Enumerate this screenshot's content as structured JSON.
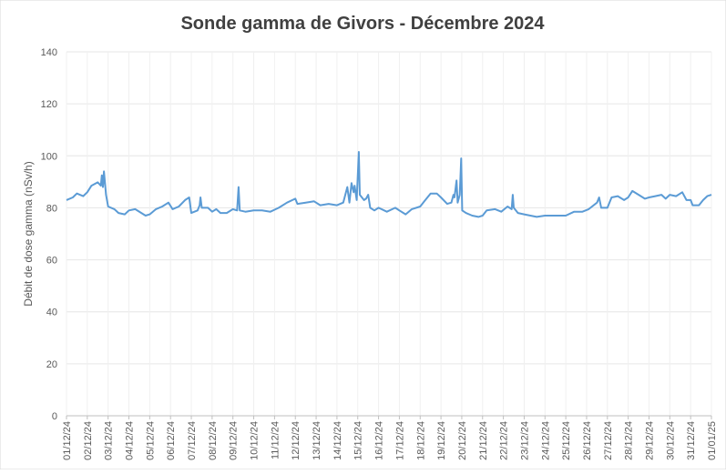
{
  "chart_data": {
    "type": "line",
    "title": "Sonde gamma de Givors - Décembre 2024",
    "ylabel": "Débit de dose gamma (nSv/h)",
    "color": "#5b9bd5",
    "grid": true,
    "xlim": [
      0,
      31
    ],
    "ylim": [
      0,
      140
    ],
    "yticks": [
      0,
      20,
      40,
      60,
      80,
      100,
      120,
      140
    ],
    "xticks": [
      {
        "value": 0,
        "label": "01/12/24"
      },
      {
        "value": 1,
        "label": "02/12/24"
      },
      {
        "value": 2,
        "label": "03/12/24"
      },
      {
        "value": 3,
        "label": "04/12/24"
      },
      {
        "value": 4,
        "label": "05/12/24"
      },
      {
        "value": 5,
        "label": "06/12/24"
      },
      {
        "value": 6,
        "label": "07/12/24"
      },
      {
        "value": 7,
        "label": "08/12/24"
      },
      {
        "value": 8,
        "label": "09/12/24"
      },
      {
        "value": 9,
        "label": "10/12/24"
      },
      {
        "value": 10,
        "label": "11/12/24"
      },
      {
        "value": 11,
        "label": "12/12/24"
      },
      {
        "value": 12,
        "label": "13/12/24"
      },
      {
        "value": 13,
        "label": "14/12/24"
      },
      {
        "value": 14,
        "label": "15/12/24"
      },
      {
        "value": 15,
        "label": "16/12/24"
      },
      {
        "value": 16,
        "label": "17/12/24"
      },
      {
        "value": 17,
        "label": "18/12/24"
      },
      {
        "value": 18,
        "label": "19/12/24"
      },
      {
        "value": 19,
        "label": "20/12/24"
      },
      {
        "value": 20,
        "label": "21/12/24"
      },
      {
        "value": 21,
        "label": "22/12/24"
      },
      {
        "value": 22,
        "label": "23/12/24"
      },
      {
        "value": 23,
        "label": "24/12/24"
      },
      {
        "value": 24,
        "label": "25/12/24"
      },
      {
        "value": 25,
        "label": "26/12/24"
      },
      {
        "value": 26,
        "label": "27/12/24"
      },
      {
        "value": 27,
        "label": "28/12/24"
      },
      {
        "value": 28,
        "label": "29/12/24"
      },
      {
        "value": 29,
        "label": "30/12/24"
      },
      {
        "value": 30,
        "label": "31/12/24"
      },
      {
        "value": 31,
        "label": "01/01/25"
      }
    ],
    "x": [
      0,
      0.3,
      0.5,
      0.8,
      1,
      1.2,
      1.5,
      1.65,
      1.7,
      1.75,
      1.8,
      1.9,
      2,
      2.3,
      2.5,
      2.8,
      3,
      3.3,
      3.6,
      3.8,
      4,
      4.3,
      4.6,
      4.9,
      5.1,
      5.4,
      5.7,
      5.9,
      6,
      6.3,
      6.4,
      6.44,
      6.5,
      6.8,
      7,
      7.2,
      7.4,
      7.7,
      8,
      8.2,
      8.27,
      8.33,
      8.6,
      9,
      9.4,
      9.8,
      10.2,
      10.6,
      11,
      11.1,
      11.5,
      11.9,
      12.2,
      12.6,
      13,
      13.3,
      13.5,
      13.6,
      13.7,
      13.8,
      13.85,
      13.95,
      14.05,
      14.1,
      14.3,
      14.4,
      14.5,
      14.6,
      14.8,
      15,
      15.4,
      15.8,
      16,
      16.3,
      16.6,
      17,
      17.2,
      17.5,
      17.8,
      18,
      18.3,
      18.5,
      18.6,
      18.65,
      18.75,
      18.8,
      18.9,
      18.97,
      19.02,
      19.2,
      19.5,
      19.8,
      20,
      20.2,
      20.6,
      20.9,
      21.2,
      21.4,
      21.45,
      21.5,
      21.7,
      22,
      22.3,
      22.6,
      23,
      23.5,
      24,
      24.4,
      24.8,
      25.1,
      25.5,
      25.6,
      25.7,
      26,
      26.2,
      26.5,
      26.8,
      27,
      27.2,
      27.5,
      27.8,
      28,
      28.3,
      28.6,
      28.8,
      29,
      29.3,
      29.6,
      29.8,
      30,
      30.1,
      30.4,
      30.6,
      30.8,
      31
    ],
    "values": [
      83,
      84,
      85.5,
      84.5,
      86,
      88.5,
      89.8,
      88.5,
      92.5,
      88,
      94,
      85,
      80.5,
      79.5,
      78,
      77.5,
      79,
      79.5,
      78,
      77,
      77.5,
      79.5,
      80.5,
      82,
      79.5,
      80.5,
      83,
      84,
      78,
      79,
      81,
      84,
      80,
      80,
      78.5,
      79.5,
      78,
      78,
      79.5,
      79,
      88,
      79,
      78.5,
      79,
      79,
      78.5,
      80,
      82,
      83.5,
      81.5,
      82,
      82.5,
      81,
      81.5,
      81,
      82,
      88,
      82,
      89.5,
      86,
      88.5,
      83,
      101.5,
      85,
      83,
      83.5,
      85,
      80,
      79,
      80,
      78.5,
      80,
      79,
      77.5,
      79.5,
      80.5,
      82.5,
      85.5,
      85.5,
      84,
      81.5,
      82,
      85,
      84,
      90.5,
      82,
      85,
      99,
      79,
      78,
      77,
      76.5,
      77,
      79,
      79.5,
      78.5,
      80.5,
      79.5,
      85,
      80,
      78,
      77.5,
      77,
      76.5,
      77,
      77,
      77,
      78.5,
      78.5,
      79.5,
      82,
      84,
      80,
      80,
      84,
      84.5,
      83,
      84,
      86.5,
      85,
      83.5,
      84,
      84.5,
      85,
      83.5,
      85,
      84.5,
      86,
      83,
      83,
      81,
      81,
      83,
      84.5,
      85
    ]
  }
}
